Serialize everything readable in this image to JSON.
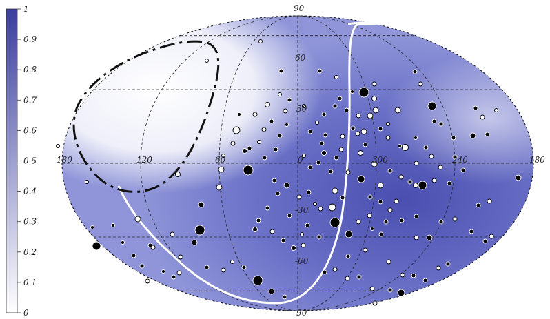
{
  "colorbar": {
    "ticks": [
      "0",
      "0.1",
      "0.2",
      "0.3",
      "0.4",
      "0.5",
      "0.6",
      "0.7",
      "0.8",
      "0.9",
      "1"
    ],
    "color_low": "#ffffff",
    "color_high": "#3b3f9e"
  },
  "map": {
    "projection": "Aitoff/Hammer",
    "lat_labels": [
      "90",
      "60",
      "30",
      "0",
      "-30",
      "-60",
      "-90"
    ],
    "lon_labels": [
      "180",
      "120",
      "60",
      "0",
      "300",
      "240",
      "180"
    ],
    "grid_color": "#222222"
  }
}
